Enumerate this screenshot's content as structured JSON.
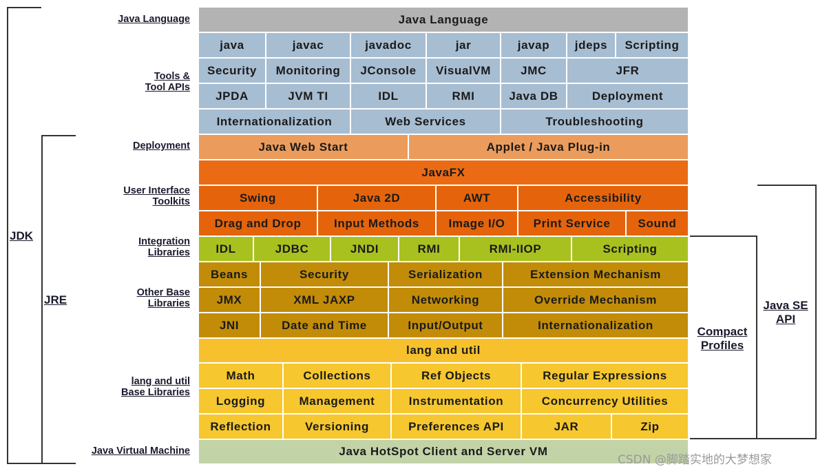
{
  "row_labels": {
    "java_language": "Java Language",
    "tools": "Tools &",
    "tools2": "Tool APIs",
    "deployment": "Deployment",
    "ui1": "User Interface",
    "ui2": "Toolkits",
    "integration1": "Integration",
    "integration2": "Libraries",
    "other1": "Other Base",
    "other2": "Libraries",
    "lang1": "lang and util",
    "lang2": "Base Libraries",
    "jvm": "Java Virtual Machine"
  },
  "brackets": {
    "jdk": "JDK",
    "jre": "JRE",
    "compact1": "Compact",
    "compact2": "Profiles",
    "javase1": "Java SE",
    "javase2": "API"
  },
  "cells": {
    "java_language": "Java Language",
    "java": "java",
    "javac": "javac",
    "javadoc": "javadoc",
    "jar": "jar",
    "javap": "javap",
    "jdeps": "jdeps",
    "scripting_tool": "Scripting",
    "security_tool": "Security",
    "monitoring": "Monitoring",
    "jconsole": "JConsole",
    "visualvm": "VisualVM",
    "jmc": "JMC",
    "jfr": "JFR",
    "jpda": "JPDA",
    "jvmti": "JVM TI",
    "idl_tool": "IDL",
    "rmi_tool": "RMI",
    "javadb": "Java DB",
    "deployment_tool": "Deployment",
    "i18n_tool": "Internationalization",
    "webservices": "Web Services",
    "troubleshooting": "Troubleshooting",
    "javawebstart": "Java Web Start",
    "applet": "Applet / Java Plug-in",
    "javafx": "JavaFX",
    "swing": "Swing",
    "java2d": "Java 2D",
    "awt": "AWT",
    "accessibility": "Accessibility",
    "dnd": "Drag and Drop",
    "inputmethods": "Input Methods",
    "imageio": "Image I/O",
    "printservice": "Print Service",
    "sound": "Sound",
    "idl": "IDL",
    "jdbc": "JDBC",
    "jndi": "JNDI",
    "rmi": "RMI",
    "rmiiiop": "RMI-IIOP",
    "scripting": "Scripting",
    "beans": "Beans",
    "security": "Security",
    "serialization": "Serialization",
    "extension": "Extension Mechanism",
    "jmx": "JMX",
    "xmljaxp": "XML JAXP",
    "networking": "Networking",
    "override": "Override Mechanism",
    "jni": "JNI",
    "datetime": "Date and Time",
    "inputoutput": "Input/Output",
    "i18n": "Internationalization",
    "langutil": "lang and util",
    "math": "Math",
    "collections": "Collections",
    "refobjects": "Ref Objects",
    "regex": "Regular Expressions",
    "logging": "Logging",
    "management": "Management",
    "instrumentation": "Instrumentation",
    "concurrency": "Concurrency Utilities",
    "reflection": "Reflection",
    "versioning": "Versioning",
    "preferences": "Preferences API",
    "jar_lib": "JAR",
    "zip": "Zip",
    "hotspot": "Java HotSpot Client and Server VM"
  },
  "watermark": "CSDN @脚踏实地的大梦想家",
  "colors": {
    "language": "#b3b3b3",
    "tools": "#a7bdd2",
    "deployment": "#eb9c5c",
    "ui_toolkits": "#e5640b",
    "integration": "#a9c11f",
    "other_base": "#c28c08",
    "lang_util": "#f6c12c",
    "jvm": "#c2d3a7"
  }
}
